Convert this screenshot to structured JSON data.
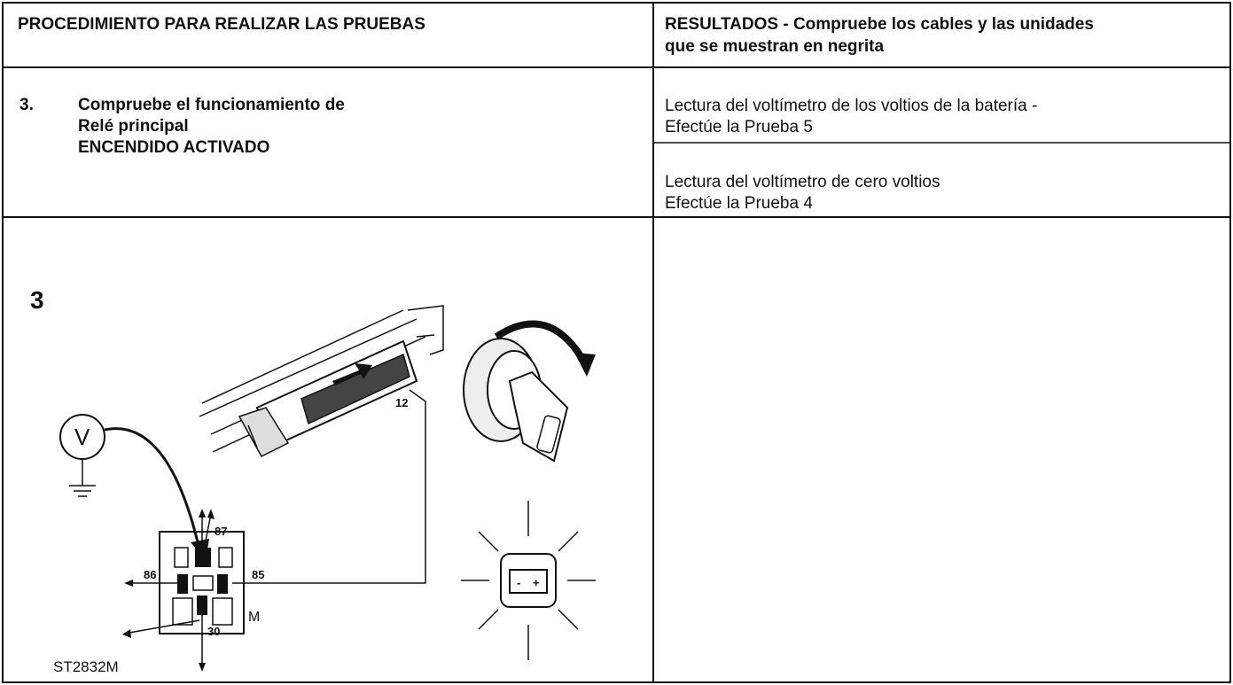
{
  "header": {
    "procedure": "PROCEDIMIENTO PARA REALIZAR LAS PRUEBAS",
    "results": [
      "RESULTADOS - Compruebe los cables y las unidades",
      "que se muestran en negrita"
    ]
  },
  "step": {
    "number": "3.",
    "lines": [
      "Compruebe el funcionamiento de",
      "Relé principal",
      "ENCENDIDO ACTIVADO"
    ]
  },
  "results": [
    {
      "lines": [
        "Lectura del voltímetro de los voltios de la batería -",
        "Efectúe la Prueba 5"
      ]
    },
    {
      "lines": [
        "Lectura del voltímetro de cero voltios",
        "Efectúe la Prueba 4"
      ]
    }
  ],
  "figure": {
    "number": "3",
    "meter": "V",
    "connector_pin": "12",
    "relay_pins": [
      "87",
      "86",
      "85",
      "30"
    ],
    "relay_mark": "M",
    "battery_minus": "-",
    "battery_plus": "+",
    "code": "ST2832M"
  }
}
